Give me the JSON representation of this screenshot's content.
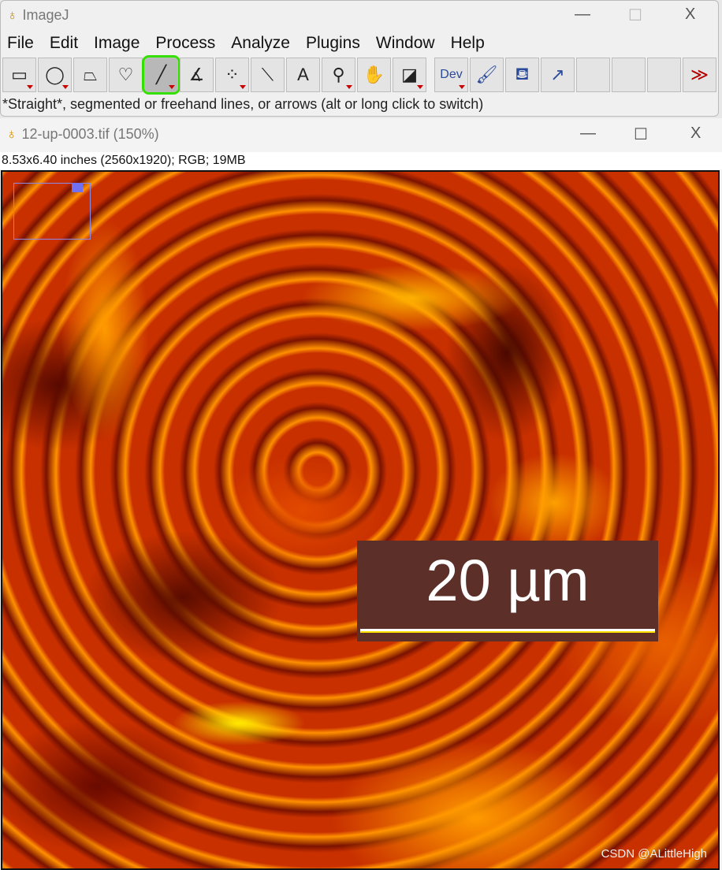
{
  "main_window": {
    "title": "ImageJ",
    "minimize": "—",
    "maximize": "☐",
    "close": "X",
    "menu": [
      "File",
      "Edit",
      "Image",
      "Process",
      "Analyze",
      "Plugins",
      "Window",
      "Help"
    ],
    "tools": [
      {
        "name": "rectangle",
        "glyph": "▭",
        "dropdown": true
      },
      {
        "name": "oval",
        "glyph": "◯",
        "dropdown": true
      },
      {
        "name": "polygon",
        "glyph": "⏢",
        "dropdown": false
      },
      {
        "name": "freehand",
        "glyph": "♡",
        "dropdown": false
      },
      {
        "name": "line",
        "glyph": "╱",
        "dropdown": true,
        "selected": true
      },
      {
        "name": "angle",
        "glyph": "∡",
        "dropdown": false
      },
      {
        "name": "multipoint",
        "glyph": "⁘",
        "dropdown": true
      },
      {
        "name": "wand",
        "glyph": "⟍",
        "dropdown": false
      },
      {
        "name": "text",
        "glyph": "A",
        "dropdown": false
      },
      {
        "name": "magnifier",
        "glyph": "⚲",
        "dropdown": true
      },
      {
        "name": "hand",
        "glyph": "✋",
        "dropdown": false
      },
      {
        "name": "color-picker",
        "glyph": "◪",
        "dropdown": true
      },
      {
        "name": "dev",
        "glyph": "Dev",
        "dropdown": true
      },
      {
        "name": "brush",
        "glyph": "🖌",
        "dropdown": false
      },
      {
        "name": "flood-fill",
        "glyph": "⛾",
        "dropdown": false
      },
      {
        "name": "arrow",
        "glyph": "↗",
        "dropdown": false
      },
      {
        "name": "empty",
        "glyph": "",
        "dropdown": false
      },
      {
        "name": "empty",
        "glyph": "",
        "dropdown": false
      },
      {
        "name": "empty",
        "glyph": "",
        "dropdown": false
      },
      {
        "name": "more",
        "glyph": "≫",
        "dropdown": false
      }
    ],
    "status": "*Straight*, segmented or freehand lines, or arrows (alt or long click to switch)"
  },
  "image_window": {
    "title": "12-up-0003.tif (150%)",
    "minimize": "—",
    "maximize": "☐",
    "close": "X",
    "info": "8.53x6.40 inches (2560x1920); RGB; 19MB",
    "scale_bar": "20 µm"
  },
  "watermark": "CSDN @ALittleHigh",
  "colors": {
    "selection": "#33e000",
    "scale_bar_bg": "#5c3029",
    "roi": "#8a8ae8"
  }
}
